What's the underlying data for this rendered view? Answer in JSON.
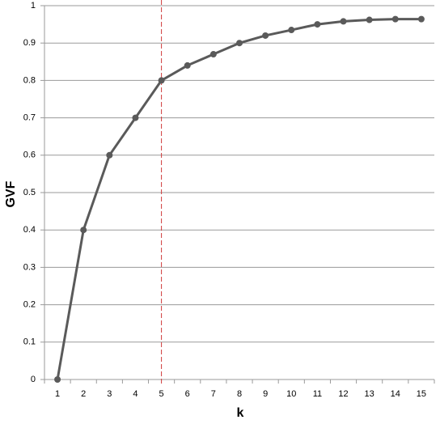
{
  "chart_data": {
    "type": "line",
    "xlabel": "k",
    "ylabel": "GVF",
    "categories": [
      "1",
      "2",
      "3",
      "4",
      "5",
      "6",
      "7",
      "8",
      "9",
      "10",
      "11",
      "12",
      "13",
      "14",
      "15"
    ],
    "series": [
      {
        "name": "GVF",
        "color": "#5a5a5a",
        "values": [
          0,
          0.4,
          0.6,
          0.7,
          0.8,
          0.84,
          0.87,
          0.9,
          0.92,
          0.935,
          0.95,
          0.958,
          0.962,
          0.964,
          0.964
        ]
      }
    ],
    "ylim": [
      0,
      1
    ],
    "yticks": [
      0,
      0.1,
      0.2,
      0.3,
      0.4,
      0.5,
      0.6,
      0.7,
      0.8,
      0.9,
      1
    ],
    "grid": true,
    "vline": {
      "at": "5",
      "color": "#d03a3a",
      "dashed": true
    }
  }
}
